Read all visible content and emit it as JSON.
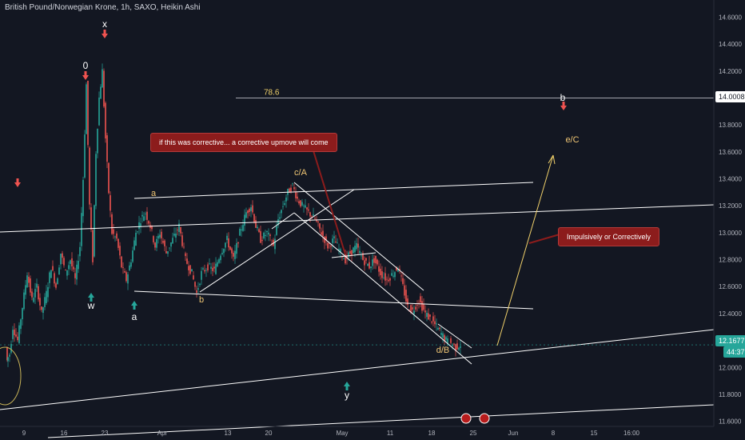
{
  "header": {
    "title": "British Pound/Norwegian Krone, 1h, SAXO, Heikin Ashi"
  },
  "price_badges": {
    "last_price": "12.1677",
    "countdown": "44:37",
    "level_price": "14.0008"
  },
  "callouts": [
    {
      "text": "if this was corrective... a corrective upmove will come"
    },
    {
      "text": "Impulsively or Correctively"
    }
  ],
  "colors": {
    "background": "#131722",
    "up_candle": "#26a69a",
    "down_candle": "#ef5350",
    "callout": "#8c1c1c",
    "projection": "#f0d06a",
    "wave_label": "#f0c674",
    "trendline": "#ffffff"
  },
  "chart_data": {
    "type": "candlestick",
    "y_ticks": [
      "11.6000",
      "11.8000",
      "12.0000",
      "12.2000",
      "12.4000",
      "12.6000",
      "12.8000",
      "13.0000",
      "13.2000",
      "13.4000",
      "13.6000",
      "13.8000",
      "14.0000",
      "14.2000",
      "14.4000",
      "14.6000"
    ],
    "ylim": [
      11.58,
      14.68
    ],
    "x_ticks": [
      "9",
      "16",
      "23",
      "Apr",
      "13",
      "20",
      "May",
      "11",
      "18",
      "25",
      "Jun",
      "8",
      "15",
      "16:00"
    ],
    "level_line": {
      "label": "78.6",
      "value": 14.0008
    },
    "wave_labels_white": [
      "x",
      "0",
      "w",
      "a",
      "y",
      "b"
    ],
    "wave_labels_gold": [
      "a",
      "b",
      "c/A",
      "d/B",
      "e/C"
    ],
    "price_path": [
      [
        9,
        12.15
      ],
      [
        10,
        12.05
      ],
      [
        14,
        12.1
      ],
      [
        18,
        12.3
      ],
      [
        24,
        12.2
      ],
      [
        30,
        12.45
      ],
      [
        36,
        12.7
      ],
      [
        42,
        12.5
      ],
      [
        48,
        12.6
      ],
      [
        54,
        12.4
      ],
      [
        60,
        12.55
      ],
      [
        66,
        12.75
      ],
      [
        72,
        12.6
      ],
      [
        78,
        12.85
      ],
      [
        84,
        12.7
      ],
      [
        90,
        12.8
      ],
      [
        96,
        12.65
      ],
      [
        102,
        12.9
      ],
      [
        106,
        13.4
      ],
      [
        110,
        14.1
      ],
      [
        114,
        13.2
      ],
      [
        118,
        12.8
      ],
      [
        122,
        13.6
      ],
      [
        126,
        14.0
      ],
      [
        130,
        14.2
      ],
      [
        134,
        13.7
      ],
      [
        138,
        13.3
      ],
      [
        142,
        13.0
      ],
      [
        148,
        12.95
      ],
      [
        154,
        12.75
      ],
      [
        160,
        12.65
      ],
      [
        166,
        12.8
      ],
      [
        172,
        13.0
      ],
      [
        178,
        13.1
      ],
      [
        184,
        13.15
      ],
      [
        190,
        13.05
      ],
      [
        196,
        12.9
      ],
      [
        202,
        13.0
      ],
      [
        210,
        12.85
      ],
      [
        218,
        12.95
      ],
      [
        226,
        13.05
      ],
      [
        234,
        12.8
      ],
      [
        242,
        12.7
      ],
      [
        248,
        12.55
      ],
      [
        254,
        12.7
      ],
      [
        262,
        12.75
      ],
      [
        270,
        12.72
      ],
      [
        278,
        12.85
      ],
      [
        286,
        12.95
      ],
      [
        294,
        12.8
      ],
      [
        302,
        13.0
      ],
      [
        310,
        13.15
      ],
      [
        316,
        13.2
      ],
      [
        322,
        13.05
      ],
      [
        328,
        12.95
      ],
      [
        336,
        13.0
      ],
      [
        344,
        12.9
      ],
      [
        350,
        13.1
      ],
      [
        356,
        13.2
      ],
      [
        362,
        13.3
      ],
      [
        368,
        13.35
      ],
      [
        374,
        13.25
      ],
      [
        380,
        13.2
      ],
      [
        388,
        13.15
      ],
      [
        396,
        13.1
      ],
      [
        404,
        13.0
      ],
      [
        412,
        12.9
      ],
      [
        420,
        12.95
      ],
      [
        428,
        12.85
      ],
      [
        434,
        12.8
      ],
      [
        440,
        12.85
      ],
      [
        448,
        12.9
      ],
      [
        456,
        12.8
      ],
      [
        464,
        12.75
      ],
      [
        470,
        12.8
      ],
      [
        478,
        12.7
      ],
      [
        486,
        12.65
      ],
      [
        494,
        12.7
      ],
      [
        500,
        12.75
      ],
      [
        506,
        12.6
      ],
      [
        512,
        12.45
      ],
      [
        518,
        12.42
      ],
      [
        526,
        12.5
      ],
      [
        534,
        12.4
      ],
      [
        542,
        12.35
      ],
      [
        548,
        12.3
      ],
      [
        554,
        12.25
      ],
      [
        560,
        12.2
      ],
      [
        566,
        12.18
      ],
      [
        572,
        12.15
      ],
      [
        578,
        12.17
      ]
    ]
  }
}
